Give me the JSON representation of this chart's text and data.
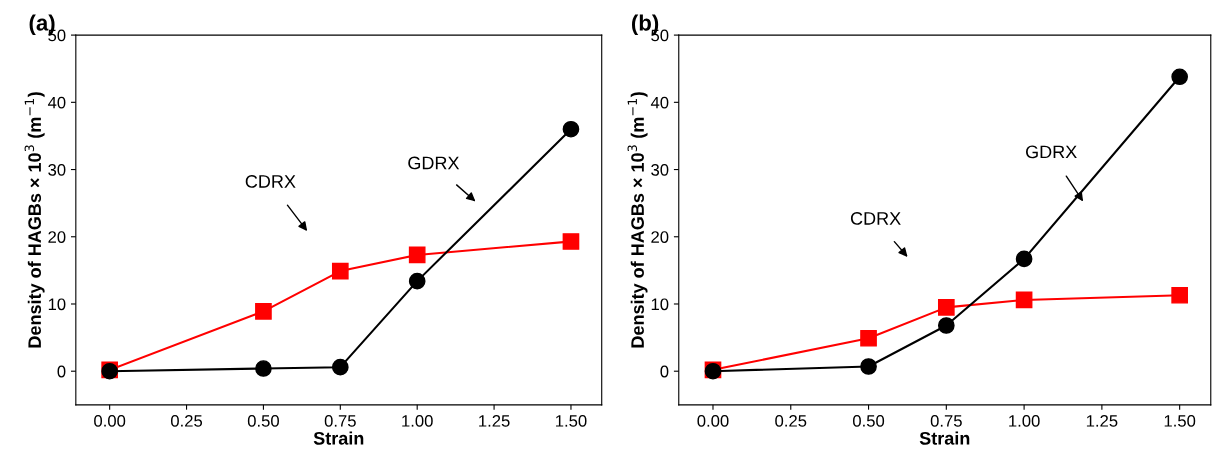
{
  "chart_data": [
    {
      "type": "line",
      "title": "(a)",
      "xlabel": "Strain",
      "ylabel": "Density of HAGBs × 10$^{3}$ (m$^{−1}$)",
      "x": [
        0,
        0.5,
        0.75,
        1.0,
        1.5
      ],
      "xlim": [
        -0.11,
        1.6
      ],
      "xticks": [
        {
          "value": 0,
          "label": "0.00"
        },
        {
          "value": 0.25,
          "label": "0.25"
        },
        {
          "value": 0.5,
          "label": "0.50"
        },
        {
          "value": 0.75,
          "label": "0.75"
        },
        {
          "value": 1.0,
          "label": "1.00"
        },
        {
          "value": 1.25,
          "label": "1.25"
        },
        {
          "value": 1.5,
          "label": "1.50"
        }
      ],
      "ylim": [
        -5,
        50
      ],
      "yticks": [
        0,
        10,
        20,
        30,
        40,
        50
      ],
      "grid": false,
      "series": [
        {
          "color": "#ff0000",
          "marker": "square",
          "values": [
            0.2,
            8.9,
            14.9,
            17.3,
            19.3
          ]
        },
        {
          "color": "#000000",
          "marker": "circle",
          "values": [
            0,
            0.4,
            0.6,
            13.4,
            36
          ]
        }
      ],
      "annotations": [
        "CDRX",
        "GDRX"
      ]
    },
    {
      "type": "line",
      "title": "(b)",
      "xlabel": "Strain",
      "ylabel": "Density of HAGBs × 10$^{3}$ (m$^{−1}$)",
      "x": [
        0,
        0.5,
        0.75,
        1.0,
        1.5
      ],
      "xlim": [
        -0.11,
        1.6
      ],
      "xticks": [
        {
          "value": 0,
          "label": "0.00"
        },
        {
          "value": 0.25,
          "label": "0.25"
        },
        {
          "value": 0.5,
          "label": "0.50"
        },
        {
          "value": 0.75,
          "label": "0.75"
        },
        {
          "value": 1.0,
          "label": "1.00"
        },
        {
          "value": 1.25,
          "label": "1.25"
        },
        {
          "value": 1.5,
          "label": "1.50"
        }
      ],
      "ylim": [
        -5,
        50
      ],
      "yticks": [
        0,
        10,
        20,
        30,
        40,
        50
      ],
      "grid": false,
      "series": [
        {
          "color": "#ff0000",
          "marker": "square",
          "values": [
            0.2,
            4.9,
            9.5,
            10.6,
            11.3
          ]
        },
        {
          "color": "#000000",
          "marker": "circle",
          "values": [
            0,
            0.7,
            6.8,
            16.7,
            43.8
          ]
        }
      ],
      "annotations": [
        "CDRX",
        "GDRX"
      ]
    }
  ]
}
